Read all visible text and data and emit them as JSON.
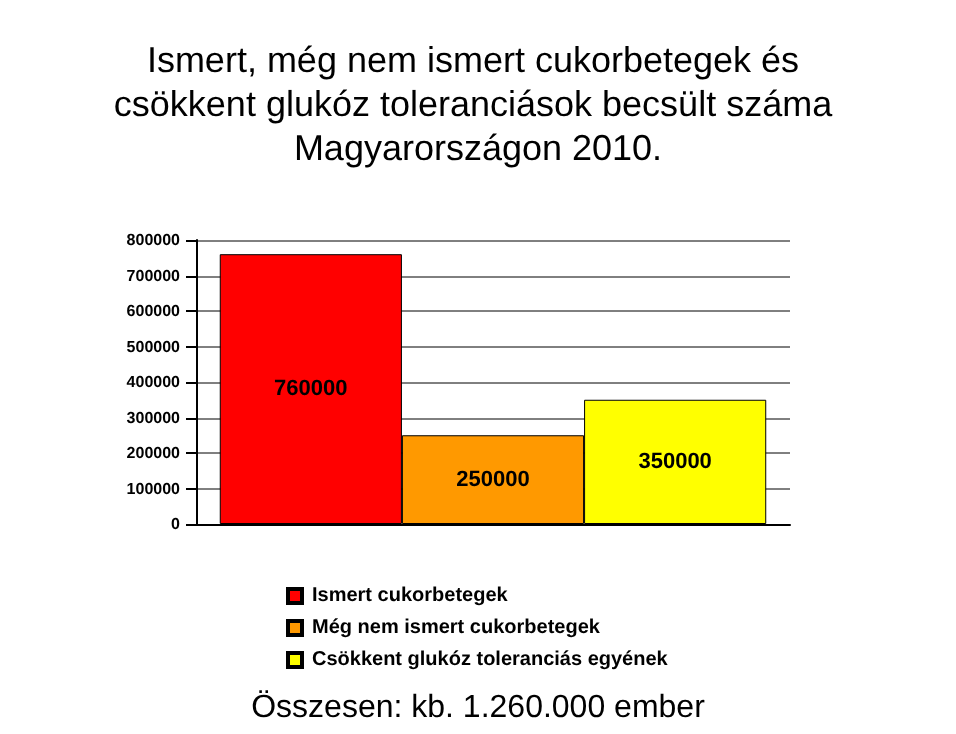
{
  "chart_data": {
    "type": "bar",
    "title": "Ismert, még nem ismert cukorbetegek és csökkent glukóz toleranciások becsült száma Magyarországon 2010.",
    "categories": [
      null
    ],
    "series": [
      {
        "name": "Ismert cukorbetegek",
        "color": "#ff0000",
        "values": [
          760000
        ]
      },
      {
        "name": "Még nem ismert cukorbetegek",
        "color": "#ff9900",
        "values": [
          250000
        ]
      },
      {
        "name": "Csökkent glukóz toleranciás egyének",
        "color": "#ffff00",
        "values": [
          350000
        ]
      }
    ],
    "ylim": [
      0,
      800000
    ],
    "yticks": [
      0,
      100000,
      200000,
      300000,
      400000,
      500000,
      600000,
      700000,
      800000
    ],
    "grid": "y",
    "legend": "bottom",
    "data_labels": true,
    "annotations": [
      "Összesen: kb. 1.260.000 ember"
    ]
  }
}
